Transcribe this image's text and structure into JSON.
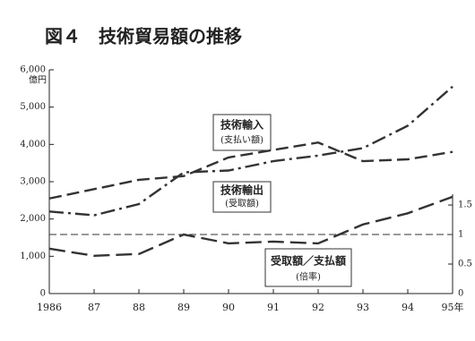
{
  "chart_data": {
    "type": "line",
    "title": "図４　技術貿易額の推移",
    "y_unit": "億円",
    "x": [
      1986,
      1987,
      1988,
      1989,
      1990,
      1991,
      1992,
      1993,
      1994,
      1995
    ],
    "series": [
      {
        "name": "技術輸入",
        "subname": "(支払い額)",
        "color": "#333333",
        "dash": "14 6",
        "values": [
          2550,
          2800,
          3050,
          3150,
          3650,
          3850,
          4050,
          3550,
          3600,
          3800
        ]
      },
      {
        "name": "技術輸出",
        "subname": "(受取額)",
        "color": "#333333",
        "dash": "16 5 3 5",
        "values": [
          2200,
          2100,
          2400,
          3250,
          3300,
          3550,
          3700,
          3900,
          4500,
          5550
        ]
      },
      {
        "name": "受取額／支払額",
        "subname": "(倍率)",
        "color": "#333333",
        "dash": "18 7",
        "axis": "y2",
        "values": [
          0.76,
          0.64,
          0.67,
          1.0,
          0.85,
          0.88,
          0.85,
          1.17,
          1.36,
          1.64
        ]
      }
    ],
    "xlim": [
      1986,
      1995
    ],
    "xticks": [
      1986,
      {
        "value": 1987,
        "label": "87"
      },
      {
        "value": 1988,
        "label": "88"
      },
      {
        "value": 1989,
        "label": "89"
      },
      {
        "value": 1990,
        "label": "90"
      },
      {
        "value": 1991,
        "label": "91"
      },
      {
        "value": 1992,
        "label": "92"
      },
      {
        "value": 1993,
        "label": "93"
      },
      {
        "value": 1994,
        "label": "94"
      },
      {
        "value": 1995,
        "label": "95年"
      }
    ],
    "ylim": [
      0,
      6000
    ],
    "yticks": [
      0,
      {
        "value": 1000,
        "label": "1,000"
      },
      {
        "value": 2000,
        "label": "2,000"
      },
      {
        "value": 3000,
        "label": "3,000"
      },
      {
        "value": 4000,
        "label": "4,000"
      },
      {
        "value": 5000,
        "label": "5,000"
      },
      {
        "value": 6000,
        "label": "6,000"
      }
    ],
    "y2lim": [
      0,
      3.79
    ],
    "y2ticks": [
      0,
      0.5,
      1,
      1.5
    ],
    "y2_reference": 1
  }
}
